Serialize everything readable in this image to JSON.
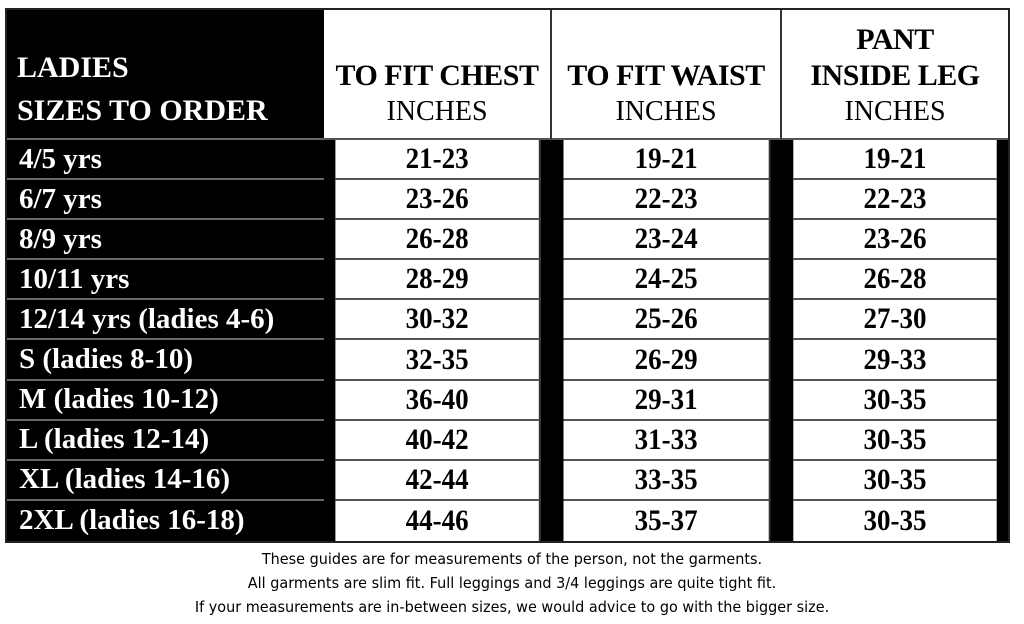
{
  "header": {
    "size_col": [
      "LADIES",
      "SIZES TO ORDER"
    ],
    "columns": [
      {
        "title_lines": [
          "TO FIT CHEST"
        ],
        "unit": "INCHES"
      },
      {
        "title_lines": [
          "TO FIT WAIST"
        ],
        "unit": "INCHES"
      },
      {
        "title_lines": [
          "PANT",
          "INSIDE LEG"
        ],
        "unit": "INCHES"
      }
    ]
  },
  "rows": [
    {
      "size": "4/5 yrs",
      "chest": "21-23",
      "waist": "19-21",
      "leg": "19-21"
    },
    {
      "size": "6/7 yrs",
      "chest": "23-26",
      "waist": "22-23",
      "leg": "22-23"
    },
    {
      "size": "8/9 yrs",
      "chest": "26-28",
      "waist": "23-24",
      "leg": "23-26"
    },
    {
      "size": "10/11 yrs",
      "chest": "28-29",
      "waist": "24-25",
      "leg": "26-28"
    },
    {
      "size": "12/14 yrs (ladies 4-6)",
      "chest": "30-32",
      "waist": "25-26",
      "leg": "27-30"
    },
    {
      "size": "S (ladies 8-10)",
      "chest": "32-35",
      "waist": "26-29",
      "leg": "29-33"
    },
    {
      "size": "M (ladies 10-12)",
      "chest": "36-40",
      "waist": "29-31",
      "leg": "30-35"
    },
    {
      "size": "L (ladies 12-14)",
      "chest": "40-42",
      "waist": "31-33",
      "leg": "30-35"
    },
    {
      "size": "XL (ladies 14-16)",
      "chest": "42-44",
      "waist": "33-35",
      "leg": "30-35"
    },
    {
      "size": "2XL (ladies 16-18)",
      "chest": "44-46",
      "waist": "35-37",
      "leg": "30-35"
    }
  ],
  "notes": [
    "These guides are for measurements of the person, not the garments.",
    "All garments are slim fit. Full leggings and 3/4 leggings are quite tight fit.",
    "If your measurements are in-between sizes, we would advice to go with the bigger size."
  ]
}
